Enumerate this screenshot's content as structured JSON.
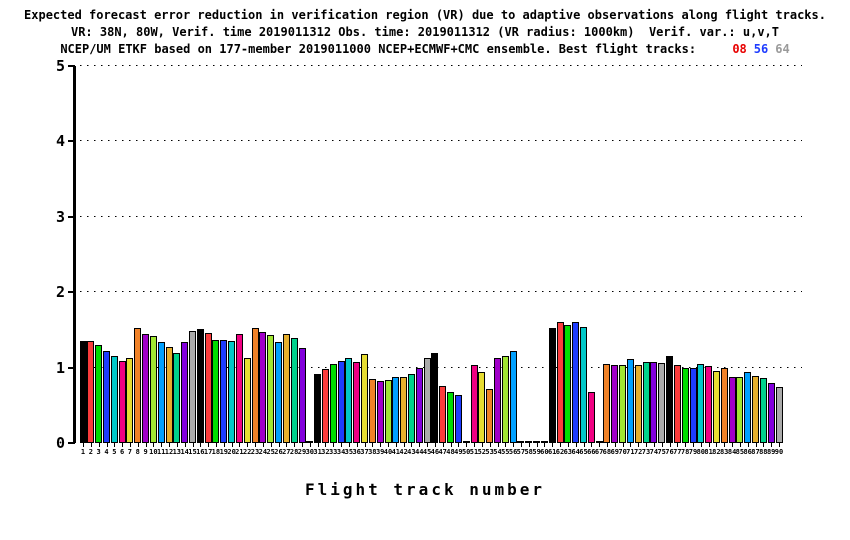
{
  "title": {
    "line1": "Expected forecast error reduction in verification region (VR) due to adaptive observations along flight tracks.",
    "line2": "VR: 38N, 80W, Verif. time 2019011312 Obs. time: 2019011312 (VR radius: 1000km)  Verif. var.: u,v,T",
    "line3_prefix": "NCEP/UM ETKF based on 177-member 2019011000 NCEP+ECMWF+CMC ensemble. Best flight tracks: ",
    "best_tracks": [
      {
        "label": "08",
        "color": "#e80000"
      },
      {
        "label": "56",
        "color": "#1e3cff"
      },
      {
        "label": "64",
        "color": "#9a9a9a"
      }
    ]
  },
  "chart_data": {
    "type": "bar",
    "title": "Expected forecast error reduction in VR due to adaptive observations along flight tracks",
    "xlabel": "Flight track number",
    "ylabel": "",
    "x_range": [
      1,
      90
    ],
    "ylim": [
      0,
      5
    ],
    "yticks": [
      0,
      1,
      2,
      3,
      4,
      5
    ],
    "grid": "dotted horizontal at each integer",
    "legend": "none",
    "best_flight_tracks": [
      8,
      56,
      64
    ],
    "values": [
      1.35,
      1.35,
      1.3,
      1.22,
      1.15,
      1.09,
      1.13,
      1.52,
      1.45,
      1.42,
      1.34,
      1.27,
      1.2,
      1.34,
      1.49,
      1.51,
      1.46,
      1.37,
      1.36,
      1.35,
      1.45,
      1.13,
      1.52,
      1.47,
      1.43,
      1.34,
      1.44,
      1.39,
      1.26,
      0.02,
      0.92,
      0.98,
      1.05,
      1.09,
      1.13,
      1.07,
      1.18,
      0.85,
      0.82,
      0.84,
      0.87,
      0.88,
      0.92,
      1.0,
      1.13,
      1.2,
      0.75,
      0.68,
      0.63,
      0.02,
      1.04,
      0.94,
      0.71,
      1.13,
      1.15,
      1.22,
      0.02,
      0.02,
      0.02,
      0.02,
      1.53,
      1.6,
      1.56,
      1.61,
      1.54,
      0.68,
      0.02,
      1.05,
      1.03,
      1.04,
      1.11,
      1.04,
      1.08,
      1.08,
      1.06,
      1.15,
      1.04,
      0.99,
      1.0,
      1.05,
      1.02,
      0.96,
      0.99,
      0.88,
      0.88,
      0.94,
      0.89,
      0.86,
      0.8,
      0.74
    ],
    "palette_cycle": 15,
    "palette": [
      "#000000",
      "#fa3c3c",
      "#00dc00",
      "#1e3cff",
      "#00c8c8",
      "#f00082",
      "#e6dc32",
      "#f08228",
      "#a000c8",
      "#a0e632",
      "#00a0ff",
      "#e6af2d",
      "#00d28c",
      "#8200dc",
      "#aaaaaa"
    ]
  }
}
